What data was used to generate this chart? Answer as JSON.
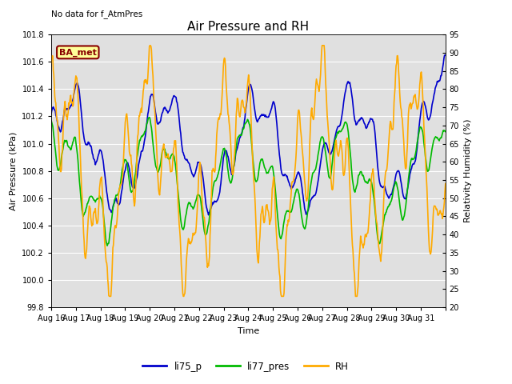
{
  "title": "Air Pressure and RH",
  "top_left_text": "No data for f_AtmPres",
  "ba_met_label": "BA_met",
  "xlabel": "Time",
  "ylabel_left": "Air Pressure (kPa)",
  "ylabel_right": "Relativity Humidity (%)",
  "ylim_left": [
    99.8,
    101.8
  ],
  "ylim_right": [
    20,
    95
  ],
  "yticks_left": [
    99.8,
    100.0,
    100.2,
    100.4,
    100.6,
    100.8,
    101.0,
    101.2,
    101.4,
    101.6,
    101.8
  ],
  "yticks_right": [
    20,
    25,
    30,
    35,
    40,
    45,
    50,
    55,
    60,
    65,
    70,
    75,
    80,
    85,
    90,
    95
  ],
  "xtick_labels": [
    "Aug 16",
    "Aug 17",
    "Aug 18",
    "Aug 19",
    "Aug 20",
    "Aug 21",
    "Aug 22",
    "Aug 23",
    "Aug 24",
    "Aug 25",
    "Aug 26",
    "Aug 27",
    "Aug 28",
    "Aug 29",
    "Aug 30",
    "Aug 31"
  ],
  "line_colors": {
    "li75_p": "#0000cc",
    "li77_pres": "#00bb00",
    "RH": "#ffaa00"
  },
  "line_widths": {
    "li75_p": 1.2,
    "li77_pres": 1.2,
    "RH": 1.2
  },
  "bg_color": "#e0e0e0",
  "fig_bg_color": "#ffffff",
  "title_fontsize": 11,
  "axis_label_fontsize": 8,
  "tick_fontsize": 7,
  "n_days": 16,
  "pts_per_day": 48
}
